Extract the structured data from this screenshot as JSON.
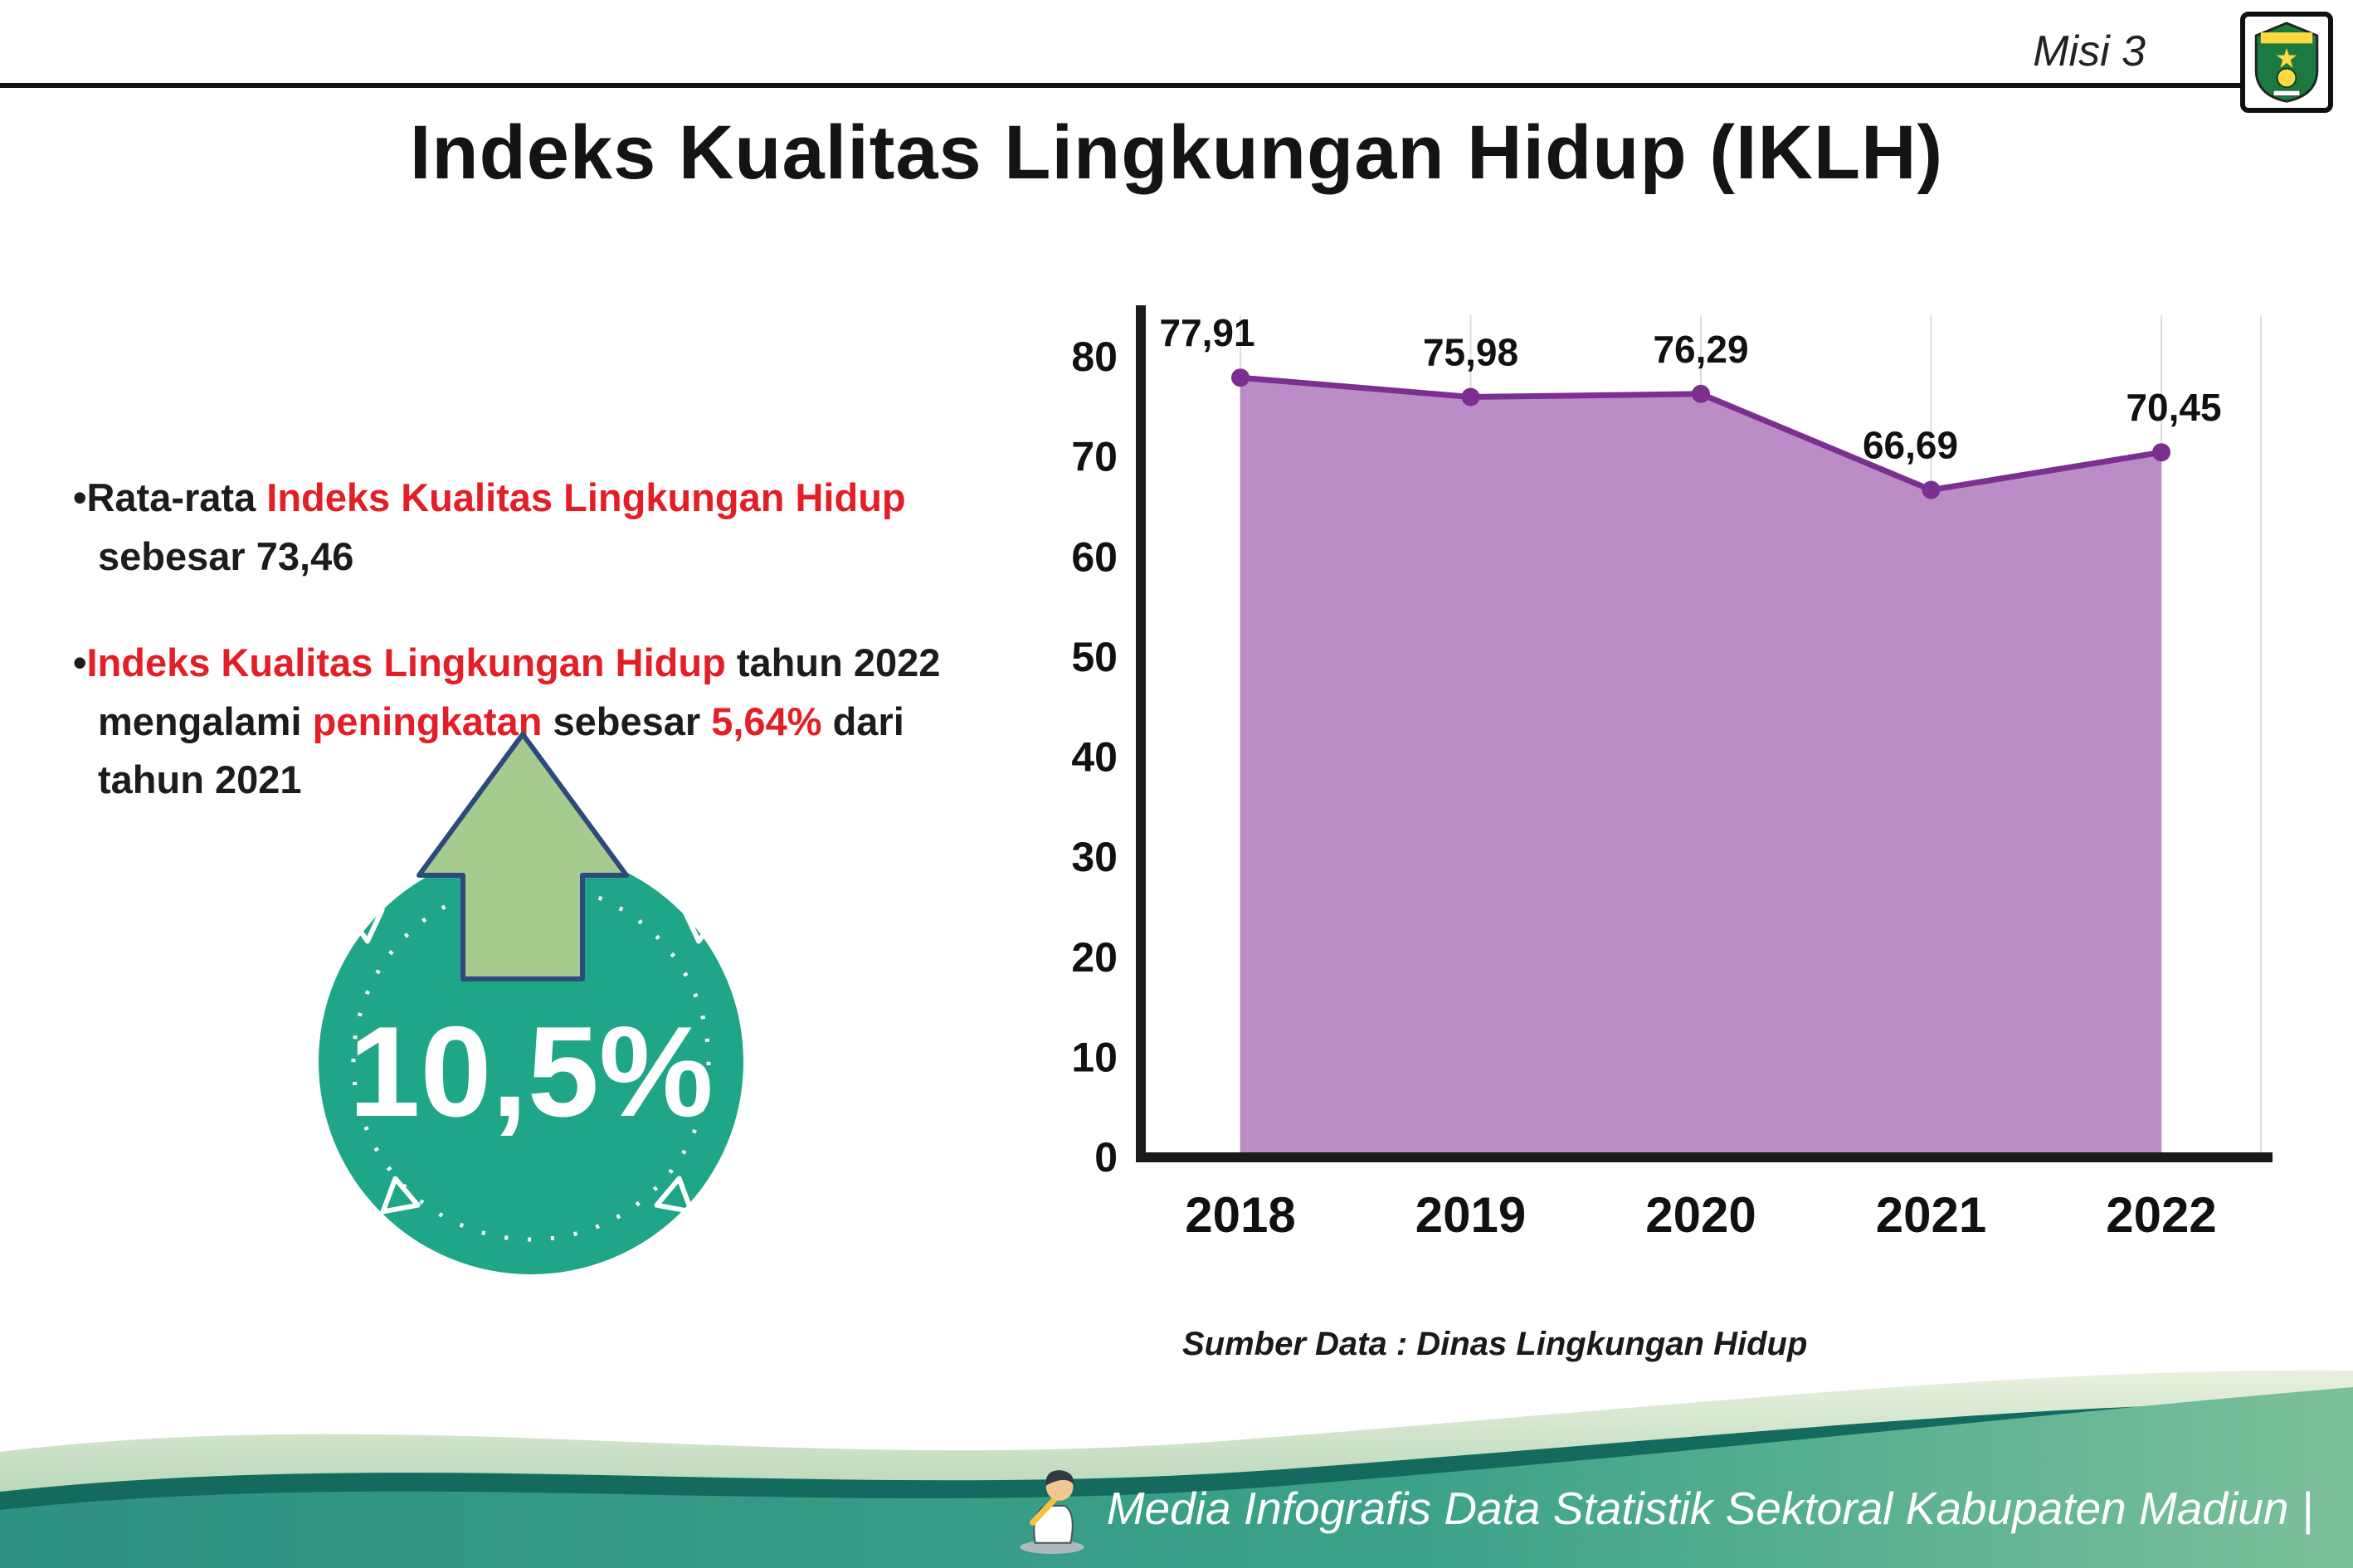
{
  "meta": {
    "misi": "Misi 3",
    "bullet_char": "•"
  },
  "title": "Indeks Kualitas Lingkungan Hidup (IKLH)",
  "bullets": {
    "one": [
      {
        "t": "Rata-rata "
      },
      {
        "t": "Indeks Kualitas Lingkungan Hidup"
      },
      {
        "t": " sebesar 73,46"
      }
    ],
    "two": [
      {
        "t": "Indeks Kualitas Lingkungan Hidup"
      },
      {
        "t": " tahun 2022 mengalami "
      },
      {
        "t": "peningkatan"
      },
      {
        "t": " sebesar "
      },
      {
        "t": "5,64%"
      },
      {
        "t": " dari tahun 2021"
      }
    ]
  },
  "badge": {
    "value": "10,5%"
  },
  "chart_data": {
    "type": "area",
    "categories": [
      "2018",
      "2019",
      "2020",
      "2021",
      "2022"
    ],
    "values": [
      77.91,
      75.98,
      76.29,
      66.69,
      70.45
    ],
    "value_labels": [
      "77,91",
      "75,98",
      "76,29",
      "66,69",
      "70,45"
    ],
    "title": "Indeks Kualitas Lingkungan Hidup (IKLH)",
    "xlabel": "",
    "ylabel": "",
    "ylim": [
      0,
      80
    ],
    "ytick_step": 10,
    "grid": "vertical-light",
    "legend": "none",
    "colors": {
      "fill": "#bb8cc6",
      "line": "#7b2f8f",
      "axis": "#1a1a1a"
    },
    "source": "Sumber Data : Dinas Lingkungan Hidup"
  },
  "footer": {
    "text": "Media Infografis Data Statistik Sektoral Kabupaten Madiun |"
  }
}
